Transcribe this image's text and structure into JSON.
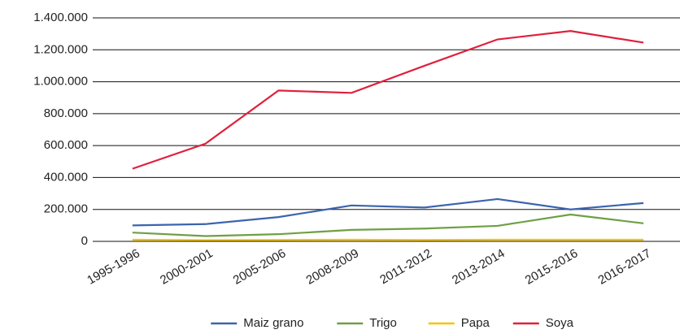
{
  "chart_data": {
    "type": "line",
    "categories": [
      "1995-1996",
      "2000-2001",
      "2005-2006",
      "2008-2009",
      "2011-2012",
      "2013-2014",
      "2015-2016",
      "2016-2017"
    ],
    "series": [
      {
        "name": "Maiz grano",
        "color": "#3c64ae",
        "values": [
          100000,
          108000,
          152000,
          225000,
          212000,
          265000,
          200000,
          240000
        ]
      },
      {
        "name": "Trigo",
        "color": "#6f9f45",
        "values": [
          55000,
          33000,
          45000,
          72000,
          80000,
          97000,
          168000,
          113000
        ]
      },
      {
        "name": "Papa",
        "color": "#f5c400",
        "values": [
          10000,
          8000,
          9000,
          10000,
          9000,
          10000,
          10000,
          10000
        ]
      },
      {
        "name": "Soya",
        "color": "#e0203c",
        "values": [
          455000,
          612000,
          945000,
          930000,
          1100000,
          1265000,
          1318000,
          1245000
        ]
      }
    ],
    "ylim": [
      0,
      1400000
    ],
    "yticks": [
      {
        "value": 0,
        "label": "0"
      },
      {
        "value": 200000,
        "label": "200.000"
      },
      {
        "value": 400000,
        "label": "400.000"
      },
      {
        "value": 600000,
        "label": "600.000"
      },
      {
        "value": 800000,
        "label": "800.000"
      },
      {
        "value": 1000000,
        "label": "1.000.000"
      },
      {
        "value": 1200000,
        "label": "1.200.000"
      },
      {
        "value": 1400000,
        "label": "1.400.000"
      }
    ],
    "grid": true,
    "legend": "bottom"
  }
}
